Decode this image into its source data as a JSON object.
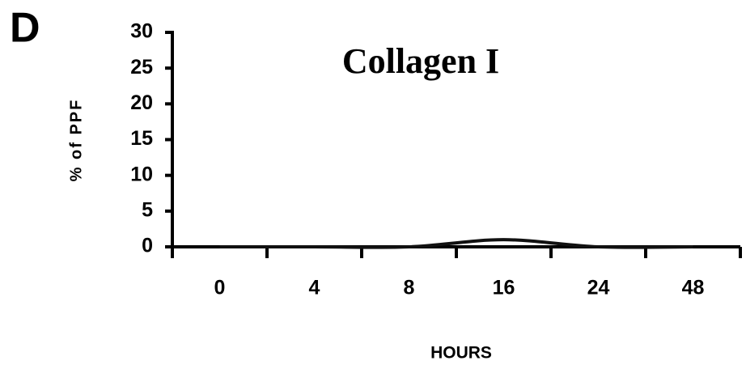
{
  "chart_data": {
    "type": "line",
    "panel_label": "D",
    "title": "Collagen I",
    "y_label": "% of PPF",
    "x_label": "HOURS",
    "categories": [
      "0",
      "4",
      "8",
      "16",
      "24",
      "48"
    ],
    "values": [
      0,
      0,
      0,
      1,
      0,
      0
    ],
    "color": "#111111",
    "ylim": [
      0,
      30
    ],
    "yticks": [
      0,
      5,
      10,
      15,
      20,
      25,
      30
    ],
    "grid": false
  }
}
